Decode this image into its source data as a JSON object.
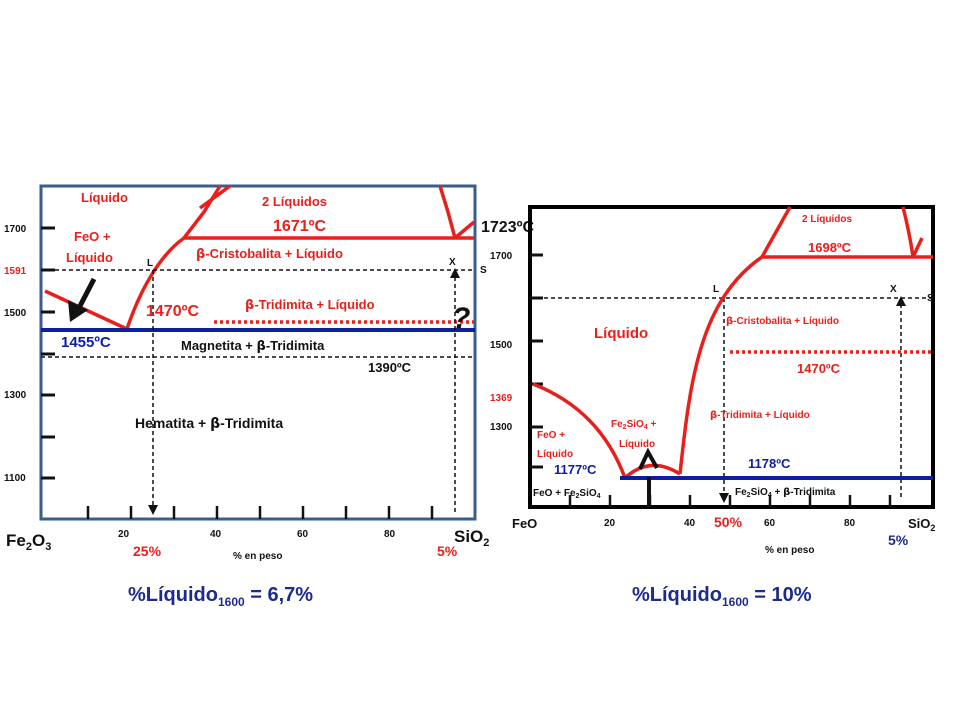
{
  "colors": {
    "red": "#e8201c",
    "blue": "#0d1f9c",
    "navy": "#1c2b8c",
    "frame_left": "#3a5e8c",
    "frame_right": "#000000",
    "text": "#111111"
  },
  "left": {
    "temp_labels": {
      "t1700": "1700",
      "t1591": "1591",
      "t1500": "1500",
      "t1300": "1300",
      "t1100": "1100"
    },
    "x_ticks": [
      "20",
      "40",
      "60",
      "80"
    ],
    "x_left_pre": "Fe",
    "x_left_sub1": "2",
    "x_left_mid": "O",
    "x_left_sub2": "3",
    "x_right_pre": "SiO",
    "x_right_sub": "2",
    "xlabel": "% en peso",
    "pct_25": "25%",
    "pct_5": "5%",
    "regions": {
      "liquido": "Líquido",
      "dos_liquidos": "2 Líquidos",
      "feo_l1": "FeO +",
      "feo_l2": "Líquido",
      "cristobalita": "-Cristobalita + Líquido",
      "tridimita": "-Tridimita + Líquido",
      "magnetita": "Magnetita + ",
      "magnetita_end": "-Tridimita",
      "hematita": "Hematita + ",
      "hematita_end": "-Tridimita"
    },
    "temps": {
      "t1671": "1671ºC",
      "t1723": "1723ºC",
      "t1470": "1470ºC",
      "t1455": "1455ºC",
      "t1390": "1390ºC"
    },
    "points": {
      "L": "L",
      "X": "X",
      "S": "S"
    },
    "question": "?",
    "beta": "β",
    "result_pre": "%Líquido",
    "result_sub": "1600",
    "result_val": " = 6,7%"
  },
  "right": {
    "temp_labels": {
      "t1700": "1700",
      "t1500": "1500",
      "t1369": "1369",
      "t1300": "1300"
    },
    "x_ticks": [
      "20",
      "40",
      "60",
      "80"
    ],
    "x_left": "FeO",
    "x_right_pre": "SiO",
    "x_right_sub": "2",
    "xlabel": "% en peso",
    "pct_50": "50%",
    "pct_5": "5%",
    "regions": {
      "dos_liquidos": "2 Líquidos",
      "liquido": "Líquido",
      "cristobalita": "-Cristobalita + Líquido",
      "tridimita": "-Tridimita + Líquido",
      "feo_l1": "FeO +",
      "feo_l2": "Líquido",
      "fayal_l1_pre": "Fe",
      "fayal_l1_sub1": "2",
      "fayal_l1_mid": "SiO",
      "fayal_l1_sub2": "4",
      "fayal_l1_end": " +",
      "fayal_l2": "Líquido",
      "feo_fayal_pre": "FeO + Fe",
      "feo_fayal_sub1": "2",
      "feo_fayal_mid": "SiO",
      "feo_fayal_sub2": "4",
      "fayal_trid_pre": "Fe",
      "fayal_trid_sub1": "2",
      "fayal_trid_mid": "SiO",
      "fayal_trid_sub2": "4",
      "fayal_trid_end": " + ",
      "fayal_trid_tail": "-Tridimita"
    },
    "temps": {
      "t1698": "1698ºC",
      "t1470": "1470ºC",
      "t1177": "1177ºC",
      "t1178": "1178ºC"
    },
    "points": {
      "L": "L",
      "X": "X",
      "S": "S"
    },
    "beta": "β",
    "result_pre": "%Líquido",
    "result_sub": "1600",
    "result_val": " = 10%"
  }
}
